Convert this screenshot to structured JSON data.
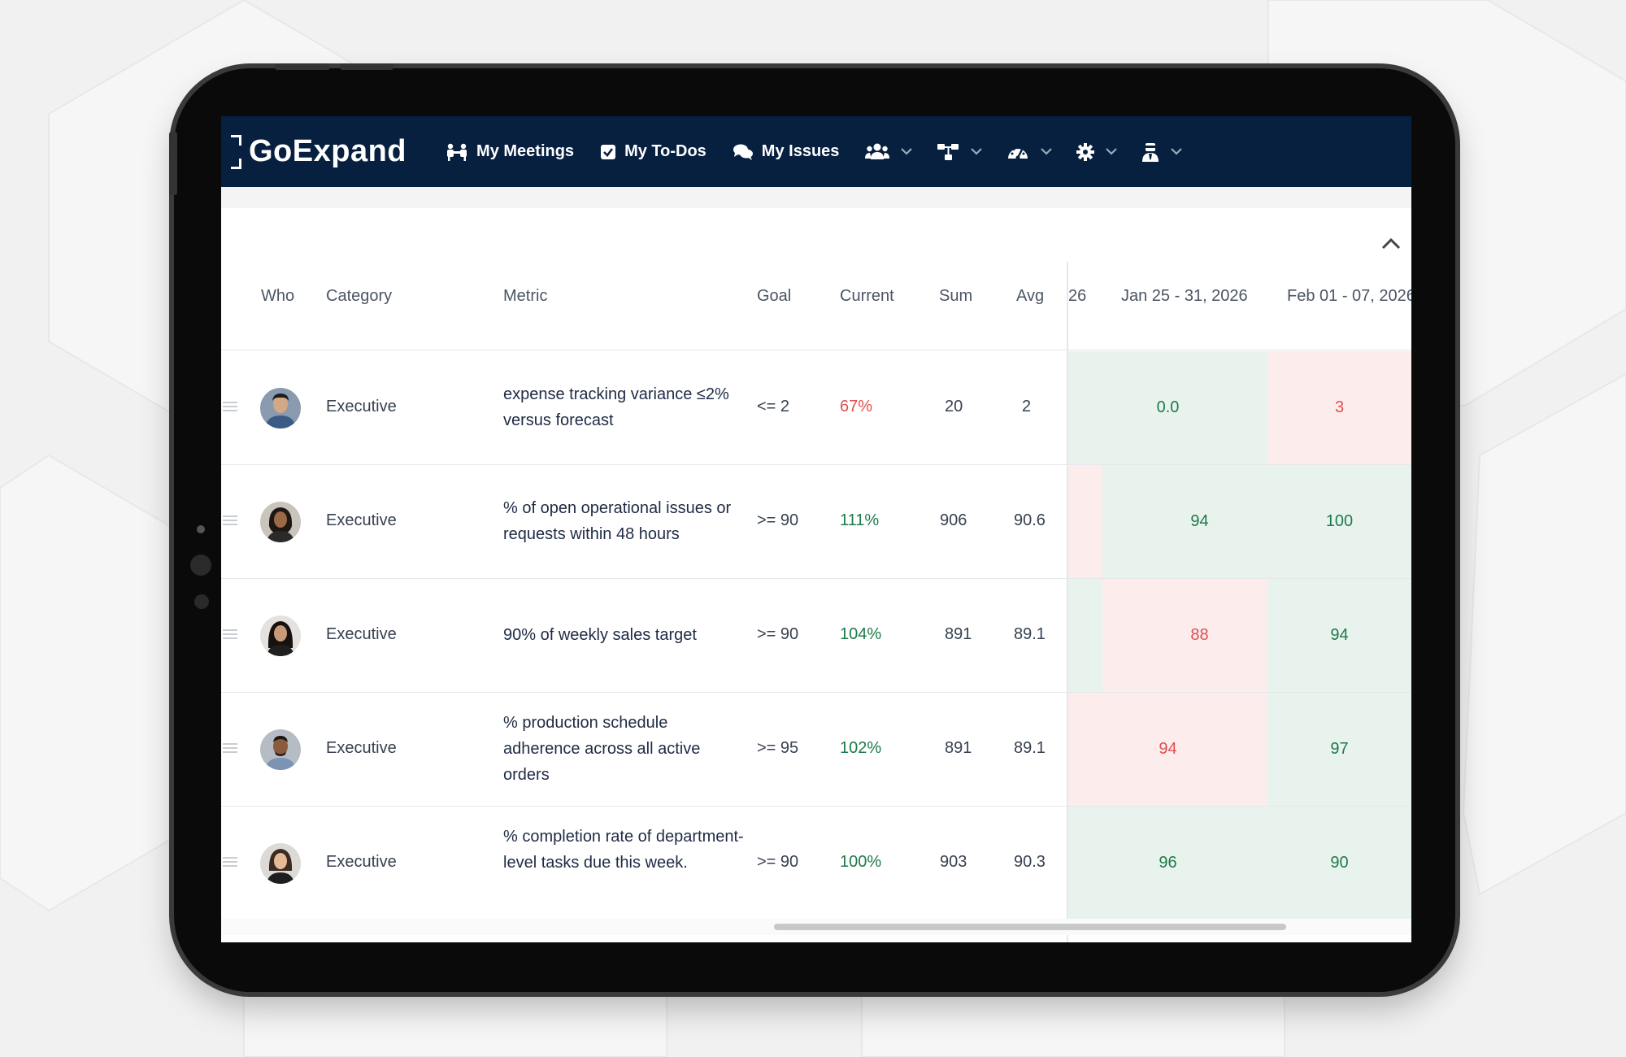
{
  "nav": {
    "brand": "GoExpand",
    "links": [
      {
        "label": "My Meetings",
        "icon": "meetings-icon"
      },
      {
        "label": "My To-Dos",
        "icon": "checkbox-icon"
      },
      {
        "label": "My Issues",
        "icon": "chat-icon"
      }
    ],
    "dropdowns": [
      "people-icon",
      "org-chart-icon",
      "dashboard-icon",
      "gear-icon",
      "user-tie-icon"
    ]
  },
  "table": {
    "headers": {
      "who": "Who",
      "category": "Category",
      "metric": "Metric",
      "goal": "Goal",
      "current": "Current",
      "sum": "Sum",
      "avg": "Avg",
      "partial_week": "26",
      "week1": "Jan 25 - 31, 2026",
      "week2": "Feb 01 - 07, 2026"
    },
    "rows": [
      {
        "category": "Executive",
        "metric": "expense tracking variance ≤2% versus forecast",
        "goal": "<= 2",
        "current": "67%",
        "sum": "20",
        "avg": "2",
        "week1": "0.0",
        "week2": "3"
      },
      {
        "category": "Executive",
        "metric": "% of open operational issues or requests within 48 hours",
        "goal": ">= 90",
        "current": "111%",
        "sum": "906",
        "avg": "90.6",
        "week1": "94",
        "week2": "100"
      },
      {
        "category": "Executive",
        "metric": "90% of weekly sales target",
        "goal": ">= 90",
        "current": "104%",
        "sum": "891",
        "avg": "89.1",
        "week1": "88",
        "week2": "94"
      },
      {
        "category": "Executive",
        "metric": "% production schedule adherence across all active orders",
        "goal": ">= 95",
        "current": "102%",
        "sum": "891",
        "avg": "89.1",
        "week1": "94",
        "week2": "97"
      },
      {
        "category": "Executive",
        "metric": "% completion rate of department-level tasks due this week.",
        "goal": ">= 90",
        "current": "100%",
        "sum": "903",
        "avg": "90.3",
        "week1": "96",
        "week2": "90"
      }
    ]
  },
  "colors": {
    "nav_bg": "#072040",
    "good": "#1e7a4a",
    "bad": "#e04f4f",
    "good_bg": "#e9f3ee",
    "bad_bg": "#fcecec"
  }
}
